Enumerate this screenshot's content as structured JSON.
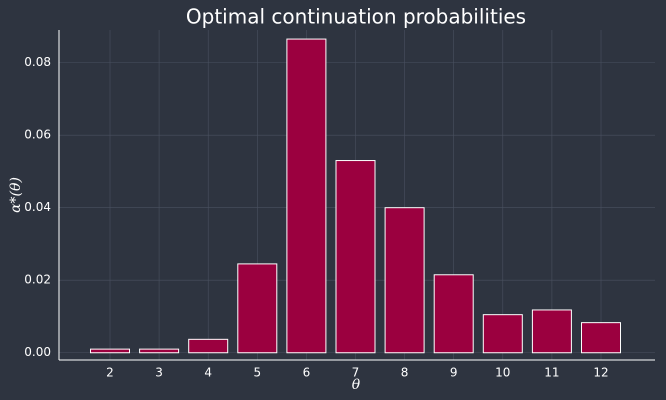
{
  "chart_data": {
    "type": "bar",
    "title": "Optimal continuation probabilities",
    "xlabel": "θ",
    "ylabel": "α*(θ)",
    "categories": [
      "2",
      "3",
      "4",
      "5",
      "6",
      "7",
      "8",
      "9",
      "10",
      "11",
      "12"
    ],
    "values": [
      0.001,
      0.001,
      0.0037,
      0.0245,
      0.0865,
      0.053,
      0.04,
      0.0215,
      0.0105,
      0.0118,
      0.0083
    ],
    "yticks": [
      "0.00",
      "0.02",
      "0.04",
      "0.06",
      "0.08"
    ],
    "ylim": [
      -0.002,
      0.089
    ],
    "grid": true,
    "colors": {
      "background": "#2e3440",
      "bar": "#9b003f",
      "bar_edge": "#ffffff",
      "text": "#ffffff",
      "grid": "#4a5160"
    }
  }
}
